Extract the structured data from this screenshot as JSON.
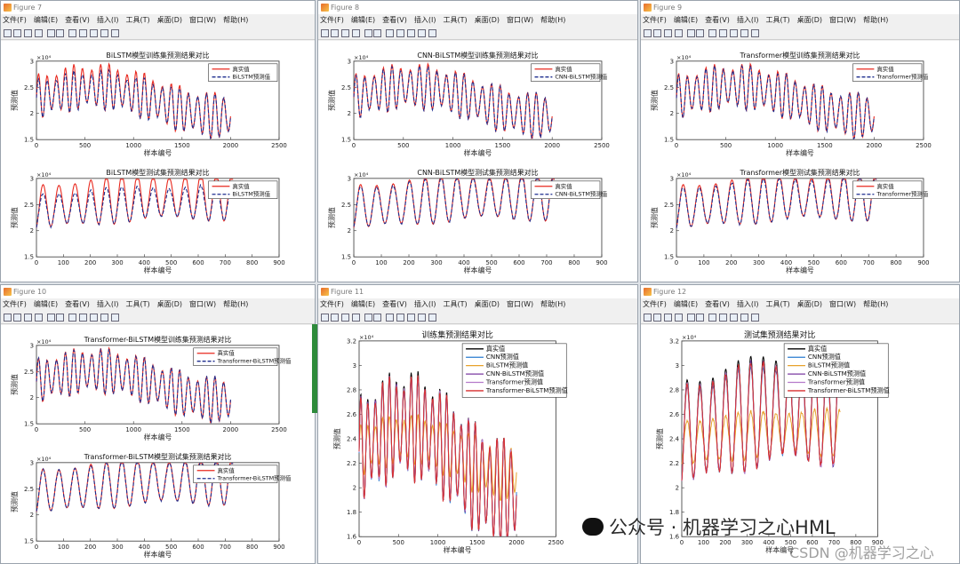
{
  "menu": [
    "文件(F)",
    "编辑(E)",
    "查看(V)",
    "插入(I)",
    "工具(T)",
    "桌面(D)",
    "窗口(W)",
    "帮助(H)"
  ],
  "windows": [
    {
      "title": "Figure 7",
      "plots": [
        {
          "title": "BiLSTM模型训练集预测结果对比",
          "train": true,
          "legend": [
            "真实值",
            "BiLSTM预测值"
          ],
          "colors": [
            "#e8281e",
            "#1c2c8e"
          ],
          "dev": 0.35
        },
        {
          "title": "BiLSTM模型测试集预测结果对比",
          "train": false,
          "legend": [
            "真实值",
            "BiLSTM预测值"
          ],
          "colors": [
            "#e8281e",
            "#1c2c8e"
          ],
          "dev": 0.5
        }
      ]
    },
    {
      "title": "Figure 8",
      "plots": [
        {
          "title": "CNN-BiLSTM模型训练集预测结果对比",
          "train": true,
          "legend": [
            "真实值",
            "CNN-BiLSTM预测值"
          ],
          "colors": [
            "#e8281e",
            "#1c2c8e"
          ],
          "dev": 0.1
        },
        {
          "title": "CNN-BiLSTM模型测试集预测结果对比",
          "train": false,
          "legend": [
            "真实值",
            "CNN-BiLSTM预测值"
          ],
          "colors": [
            "#e8281e",
            "#1c2c8e"
          ],
          "dev": 0.1
        }
      ]
    },
    {
      "title": "Figure 9",
      "plots": [
        {
          "title": "Transformer模型训练集预测结果对比",
          "train": true,
          "legend": [
            "真实值",
            "Transformer预测值"
          ],
          "colors": [
            "#e8281e",
            "#1c2c8e"
          ],
          "dev": 0.1
        },
        {
          "title": "Transformer模型测试集预测结果对比",
          "train": false,
          "legend": [
            "真实值",
            "Transformer预测值"
          ],
          "colors": [
            "#e8281e",
            "#1c2c8e"
          ],
          "dev": 0.15
        }
      ]
    },
    {
      "title": "Figure 10",
      "plots": [
        {
          "title": "Transformer-BiLSTM模型训练集预测结果对比",
          "train": true,
          "legend": [
            "真实值",
            "Transformer-BiLSTM预测值"
          ],
          "colors": [
            "#e8281e",
            "#1c2c8e"
          ],
          "dev": 0.05
        },
        {
          "title": "Transformer-BiLSTM模型测试集预测结果对比",
          "train": false,
          "legend": [
            "真实值",
            "Transformer-BiLSTM预测值"
          ],
          "colors": [
            "#e8281e",
            "#1c2c8e"
          ],
          "dev": 0.05
        }
      ]
    },
    {
      "title": "Figure 11",
      "plots": [
        {
          "title": "训练集预测结果对比",
          "train": true,
          "big": true,
          "legend": [
            "真实值",
            "CNN预测值",
            "BiLSTM预测值",
            "CNN-BiLSTM预测值",
            "Transformer预测值",
            "Transformer-BiLSTM预测值"
          ],
          "colors": [
            "#000000",
            "#2a7bd1",
            "#e8a22c",
            "#7a3aa0",
            "#b57acb",
            "#d82f2f"
          ],
          "dev": 0.25
        }
      ]
    },
    {
      "title": "Figure 12",
      "plots": [
        {
          "title": "测试集预测结果对比",
          "train": false,
          "big": true,
          "legend": [
            "真实值",
            "CNN预测值",
            "BiLSTM预测值",
            "CNN-BiLSTM预测值",
            "Transformer预测值",
            "Transformer-BiLSTM预测值"
          ],
          "colors": [
            "#000000",
            "#2a7bd1",
            "#e8a22c",
            "#7a3aa0",
            "#b57acb",
            "#d82f2f"
          ],
          "dev": 0.3
        }
      ]
    }
  ],
  "axes": {
    "xlabel": "样本编号",
    "ylabel": "预测值",
    "exponent": "×10⁴",
    "train_xticks": [
      "0",
      "500",
      "1000",
      "1500",
      "2000",
      "2500"
    ],
    "test_xticks": [
      "0",
      "100",
      "200",
      "300",
      "400",
      "500",
      "600",
      "700",
      "800",
      "900"
    ],
    "small_yticks": [
      "1.5",
      "2",
      "2.5",
      "3"
    ],
    "big_yticks": [
      "1.6",
      "1.8",
      "2",
      "2.2",
      "2.4",
      "2.6",
      "2.8",
      "3",
      "3.2"
    ],
    "big_train_xticks": [
      "0",
      "500",
      "1000",
      "1500",
      "2000",
      "2500"
    ],
    "big_test_xticks": [
      "0",
      "100",
      "200",
      "300",
      "400",
      "500",
      "600",
      "700",
      "800",
      "900"
    ]
  },
  "watermark": "公众号 · 机器学习之心HML",
  "watermark2": "CSDN @机器学习之心"
}
